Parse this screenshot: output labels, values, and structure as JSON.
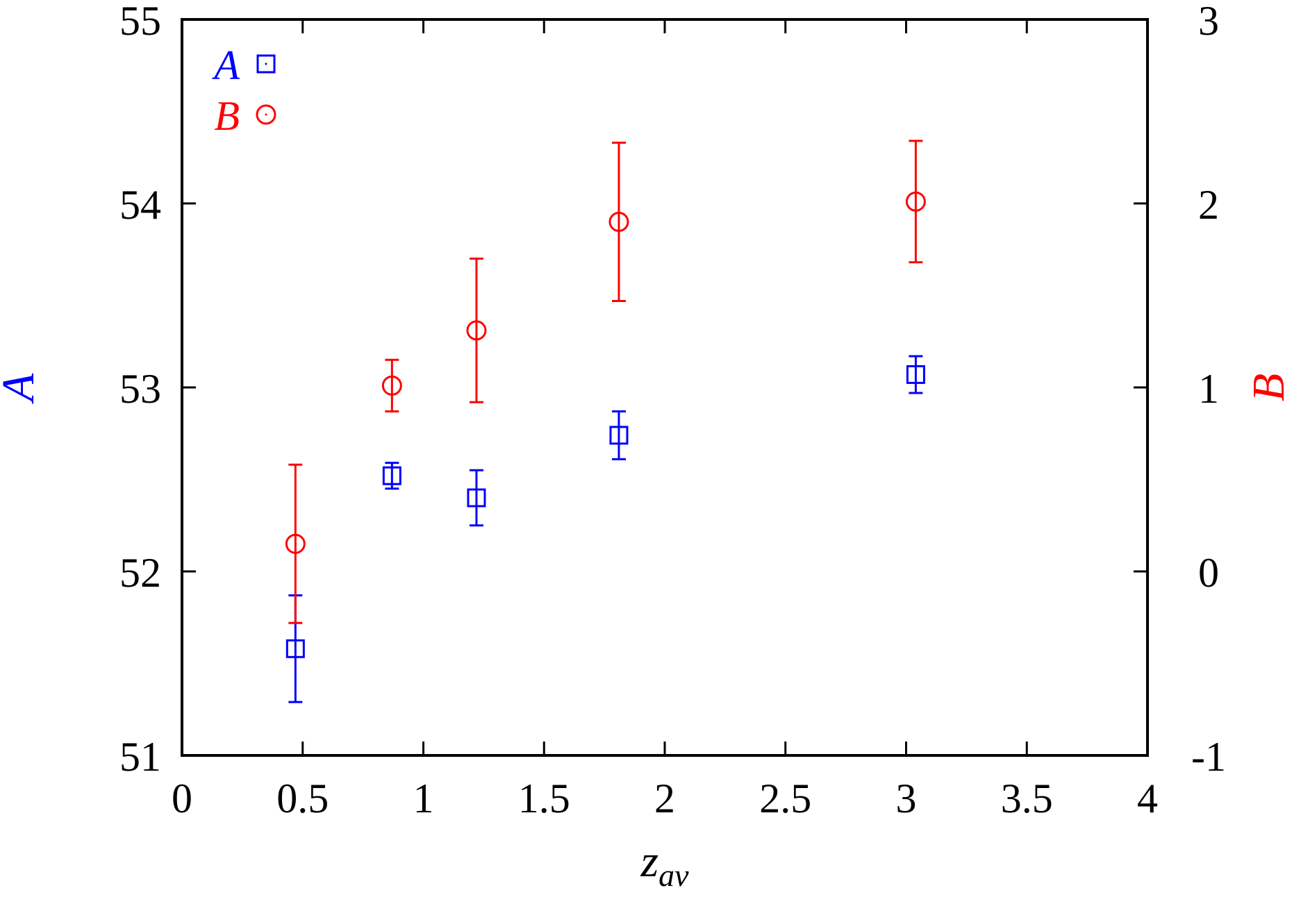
{
  "chart_data": {
    "type": "scatter",
    "title": "",
    "xlabel": "z",
    "xlabel_sub": "av",
    "ylabel_left": "A",
    "ylabel_right": "B",
    "xlim": [
      0,
      4
    ],
    "ylim_left": [
      51,
      55
    ],
    "ylim_right": [
      -1,
      3
    ],
    "x_ticks": [
      "0",
      "0.5",
      "1",
      "1.5",
      "2",
      "2.5",
      "3",
      "3.5",
      "4"
    ],
    "y_left_ticks": [
      "51",
      "52",
      "53",
      "54",
      "55"
    ],
    "y_right_ticks": [
      "-1",
      "0",
      "1",
      "2",
      "3"
    ],
    "grid": false,
    "legend_position": "top-left",
    "series": [
      {
        "name": "A",
        "axis": "left",
        "marker": "square",
        "color": "#0000ff",
        "points": [
          {
            "x": 0.47,
            "y": 51.58,
            "err": 0.29
          },
          {
            "x": 0.87,
            "y": 52.52,
            "err": 0.07
          },
          {
            "x": 1.22,
            "y": 52.4,
            "err": 0.15
          },
          {
            "x": 1.81,
            "y": 52.74,
            "err": 0.13
          },
          {
            "x": 3.04,
            "y": 53.07,
            "err": 0.1
          }
        ]
      },
      {
        "name": "B",
        "axis": "right",
        "marker": "circle",
        "color": "#ff0000",
        "points": [
          {
            "x": 0.47,
            "y": 0.15,
            "err": 0.43
          },
          {
            "x": 0.87,
            "y": 1.01,
            "err": 0.14
          },
          {
            "x": 1.22,
            "y": 1.31,
            "err": 0.39
          },
          {
            "x": 1.81,
            "y": 1.9,
            "err": 0.43
          },
          {
            "x": 3.04,
            "y": 2.01,
            "err": 0.33
          }
        ]
      }
    ]
  }
}
